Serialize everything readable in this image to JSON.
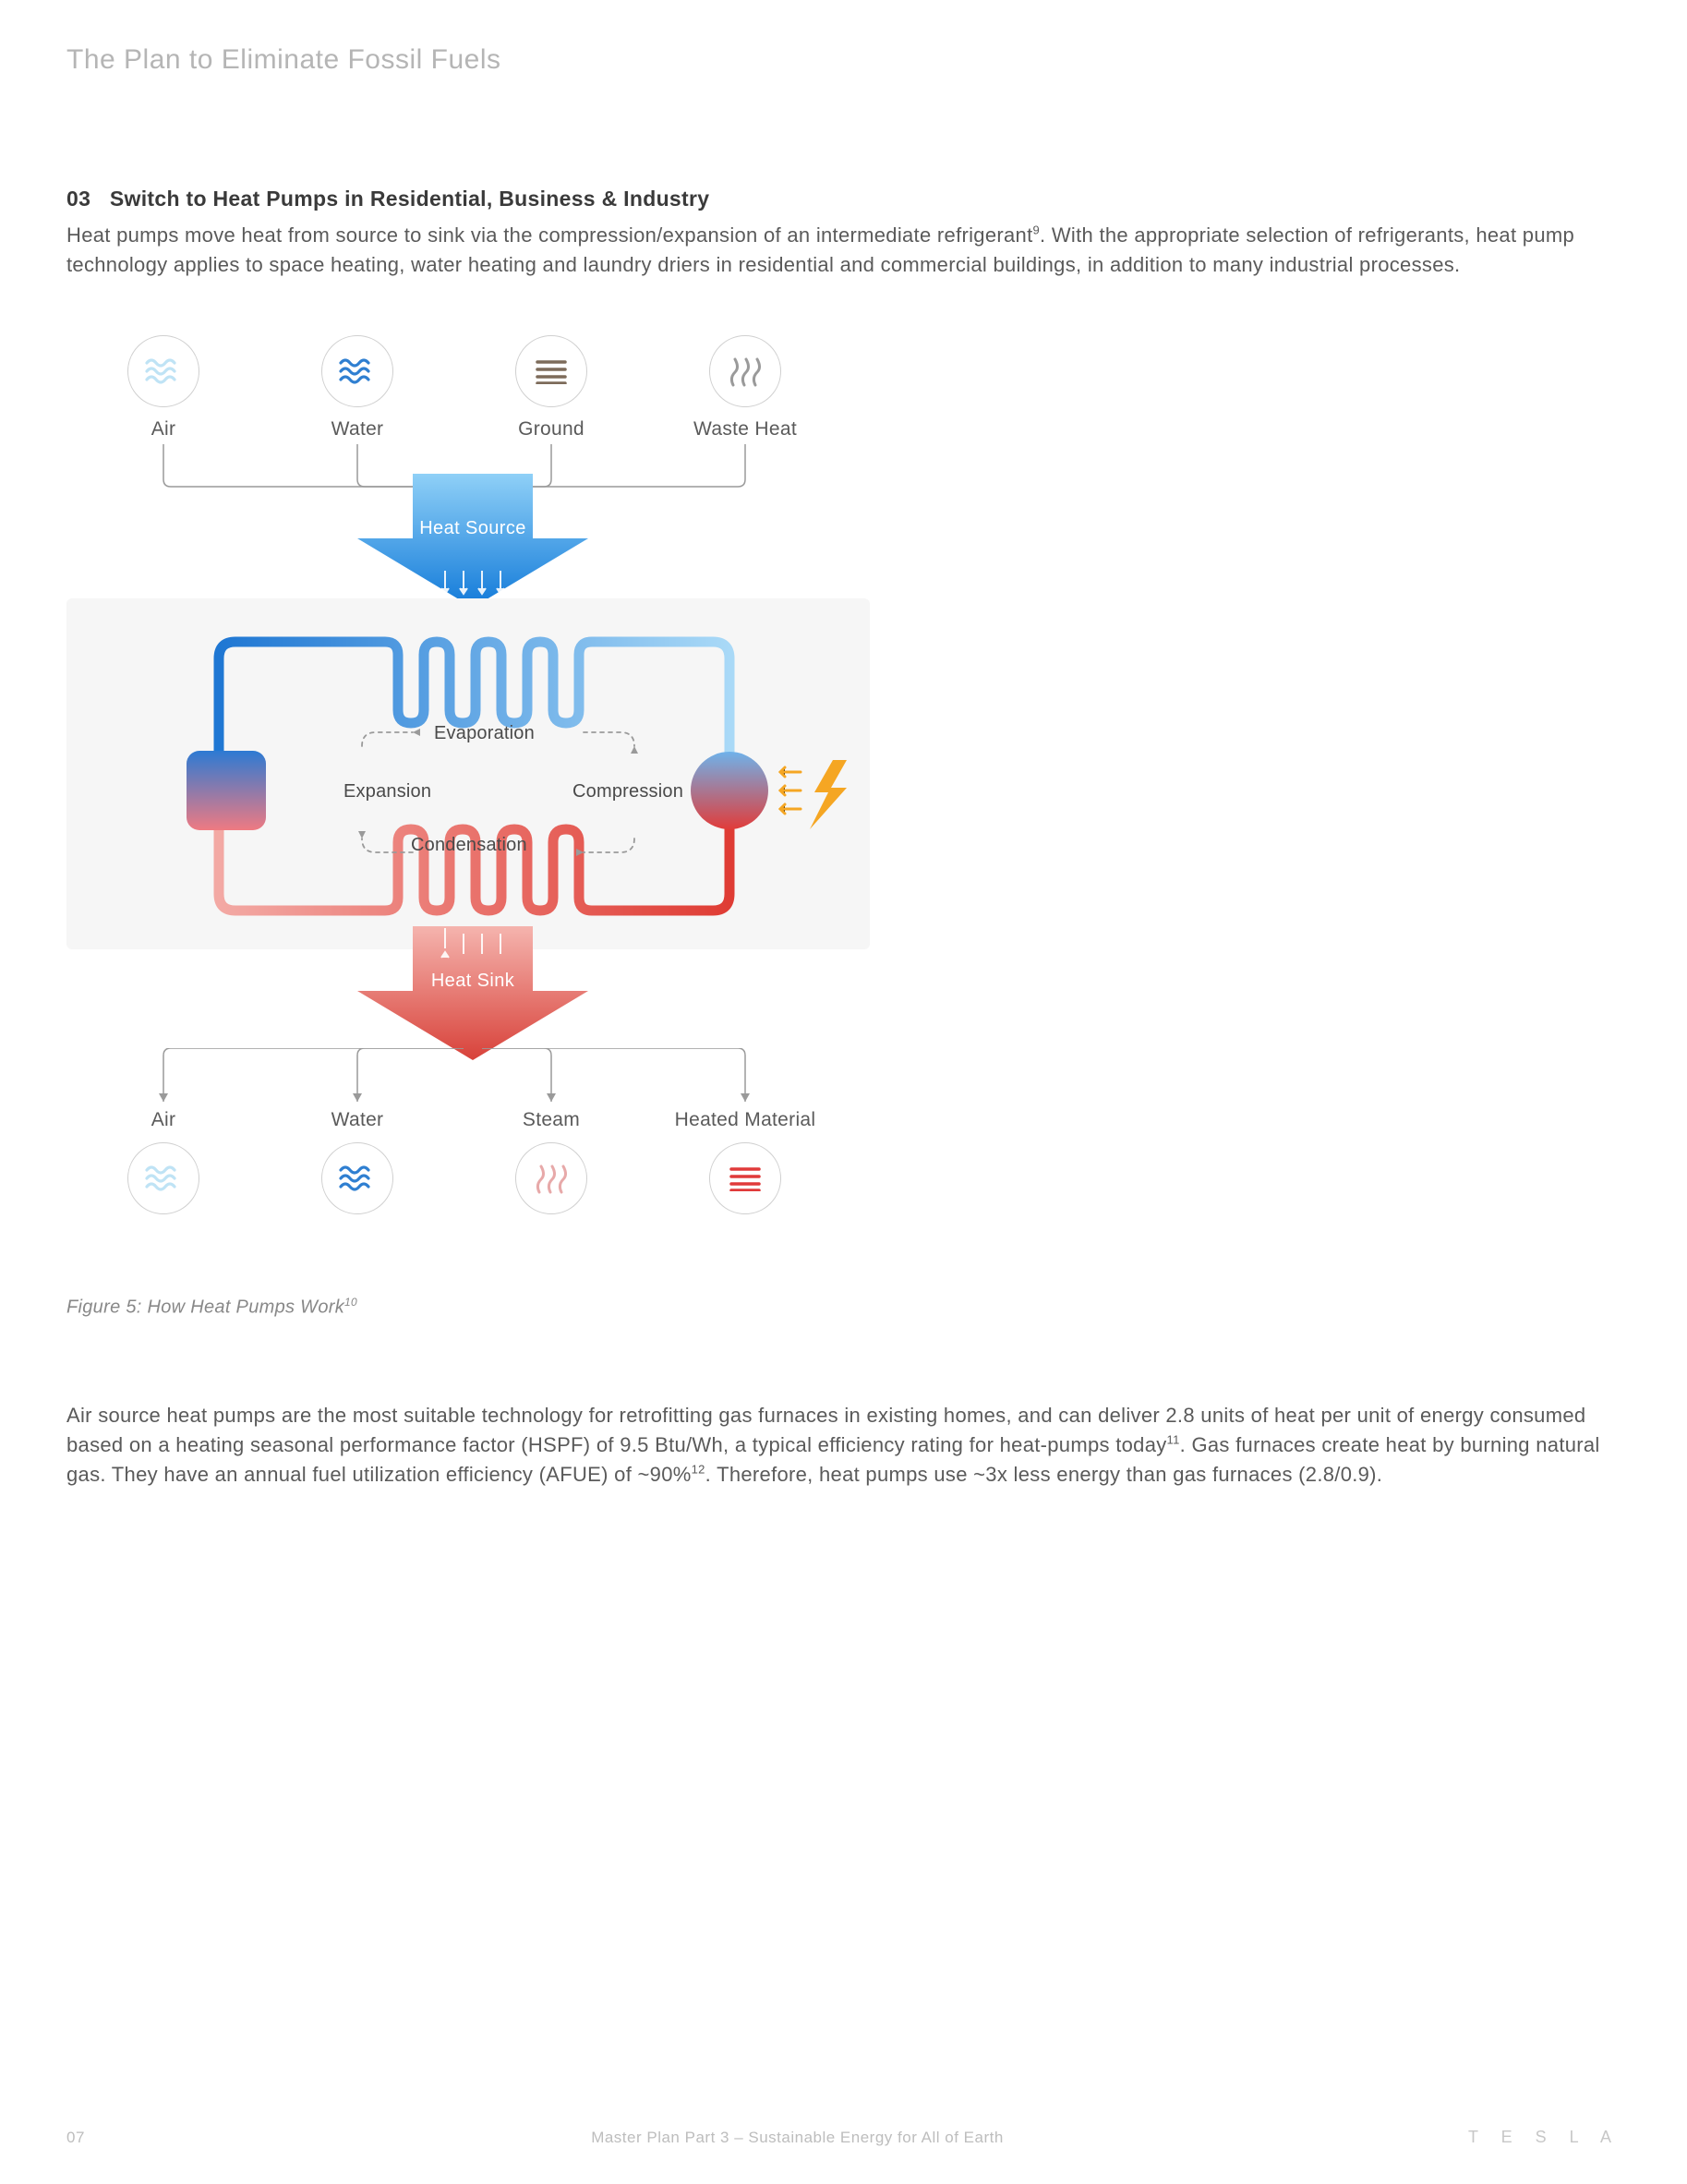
{
  "header": {
    "title": "The Plan to Eliminate Fossil Fuels"
  },
  "section": {
    "number": "03",
    "title": "Switch to Heat Pumps in Residential, Business & Industry",
    "para1_a": "Heat pumps move heat from source to sink via the compression/expansion of an intermediate refrigerant",
    "sup1": "9",
    "para1_b": ". With the appropriate selection of refrigerants, heat pump technology applies to space heating, water heating and laundry driers in residential and commercial buildings, in addition to many industrial processes."
  },
  "diagram": {
    "caption": "Figure 5: How Heat Pumps Work",
    "caption_sup": "10",
    "sources": [
      {
        "label": "Air",
        "icon": "waves",
        "color": "#bfe3f5"
      },
      {
        "label": "Water",
        "icon": "waves",
        "color": "#2f7fd1"
      },
      {
        "label": "Ground",
        "icon": "lines",
        "color": "#7d6b5a"
      },
      {
        "label": "Waste Heat",
        "icon": "steam",
        "color": "#9a9a9a"
      }
    ],
    "sinks": [
      {
        "label": "Air",
        "icon": "waves",
        "color": "#bfe3f5"
      },
      {
        "label": "Water",
        "icon": "waves",
        "color": "#2f7fd1"
      },
      {
        "label": "Steam",
        "icon": "steam",
        "color": "#e7a9a9"
      },
      {
        "label": "Heated Material",
        "icon": "lines",
        "color": "#e03a3a"
      }
    ],
    "arrows": {
      "source_label": "Heat Source",
      "sink_label": "Heat Sink",
      "source_grad_from": "#57b4ef",
      "source_grad_to": "#0a6fd6",
      "sink_grad_from": "#f4a6a1",
      "sink_grad_to": "#d84038"
    },
    "cycle": {
      "evap": "Evaporation",
      "comp": "Compression",
      "cond": "Condensation",
      "exp": "Expansion",
      "bolt_color": "#f5a623",
      "cold_color": "#2f8fe0",
      "hot_color": "#e23b36",
      "box_cold": "#3b8ee3",
      "box_hot": "#ef6a74",
      "bg": "#f6f6f6"
    },
    "wire_color": "#9a9a9a"
  },
  "para2": {
    "a": "Air source heat pumps are the most suitable technology for retrofitting gas furnaces in existing homes, and can deliver 2.8 units of heat per unit of energy consumed based on a heating seasonal performance factor (HSPF) of 9.5 Btu/Wh, a typical efficiency rating for heat-pumps today",
    "sup1": "11",
    "b": ". Gas furnaces create heat by burning natural gas. They have an annual fuel utilization efficiency (AFUE) of ~90%",
    "sup2": "12",
    "c": ". Therefore, heat pumps use ~3x less energy than gas furnaces (2.8/0.9)."
  },
  "footer": {
    "page": "07",
    "title": "Master Plan Part 3 – Sustainable Energy for All of Earth",
    "brand": "T E S L A"
  }
}
